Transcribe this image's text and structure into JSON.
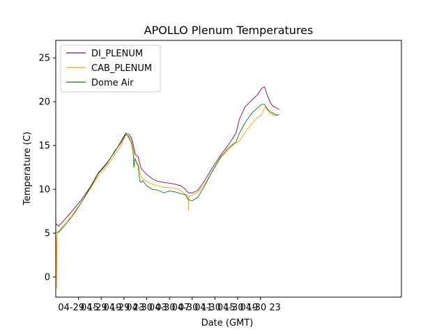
{
  "chart_data": {
    "type": "line",
    "title": "APOLLO Plenum Temperatures",
    "xlabel": "Date (GMT)",
    "ylabel": "Temperature (C)",
    "xlim": [
      11,
      71.8
    ],
    "ylim": [
      -2.3,
      27
    ],
    "x_unit": "hours since 04-29 00:00 GMT",
    "xticks": [
      {
        "value": 15,
        "label": "04-29 15"
      },
      {
        "value": 19,
        "label": "04-29 19"
      },
      {
        "value": 23,
        "label": "04-29 23"
      },
      {
        "value": 27,
        "label": "04-30 03"
      },
      {
        "value": 31,
        "label": "04-30 07"
      },
      {
        "value": 35,
        "label": "04-30 11"
      },
      {
        "value": 39,
        "label": "04-30 15"
      },
      {
        "value": 43,
        "label": "04-30 19"
      },
      {
        "value": 47,
        "label": "04-30 23"
      }
    ],
    "yticks": [
      {
        "value": 0,
        "label": "0"
      },
      {
        "value": 5,
        "label": "5"
      },
      {
        "value": 10,
        "label": "10"
      },
      {
        "value": 15,
        "label": "15"
      },
      {
        "value": 20,
        "label": "20"
      },
      {
        "value": 25,
        "label": "25"
      }
    ],
    "legend": {
      "position": "top-left"
    },
    "series": [
      {
        "name": "DI_PLENUM",
        "color": "#800080",
        "x": [
          11.0,
          11.5,
          12.5,
          14.0,
          15.5,
          17.0,
          18.5,
          20.0,
          21.5,
          22.5,
          23.3,
          23.8,
          24.3,
          24.6,
          25.0,
          25.5,
          26.0,
          27.0,
          28.0,
          29.0,
          30.0,
          31.0,
          32.0,
          33.0,
          33.8,
          34.3,
          35.0,
          36.0,
          37.0,
          38.5,
          40.0,
          41.5,
          42.7,
          43.3,
          44.3,
          45.5,
          46.5,
          47.2,
          47.7,
          48.3,
          48.8,
          49.2,
          49.8,
          50.3
        ],
        "y": [
          6.1,
          5.8,
          6.5,
          7.6,
          8.8,
          10.2,
          11.9,
          13.0,
          14.4,
          15.5,
          16.4,
          16.3,
          15.9,
          15.2,
          14.0,
          13.7,
          12.4,
          11.7,
          11.2,
          10.9,
          10.8,
          10.7,
          10.6,
          10.4,
          10.0,
          9.6,
          9.6,
          9.9,
          10.8,
          12.4,
          13.9,
          15.2,
          16.4,
          18.0,
          19.4,
          20.2,
          20.8,
          21.5,
          21.7,
          20.6,
          19.8,
          19.5,
          19.3,
          19.1
        ]
      },
      {
        "name": "CAB_PLENUM",
        "color": "#ffa500",
        "x": [
          11.0,
          11.1,
          11.2,
          11.25,
          11.3,
          11.5,
          12.5,
          14.0,
          15.5,
          17.0,
          18.5,
          20.0,
          21.5,
          22.5,
          23.3,
          23.8,
          24.3,
          24.6,
          25.0,
          25.5,
          26.0,
          27.0,
          28.0,
          29.0,
          30.0,
          31.0,
          32.0,
          33.0,
          33.8,
          34.3,
          34.35,
          34.4,
          35.0,
          36.0,
          37.0,
          38.5,
          40.0,
          41.5,
          42.7,
          43.3,
          44.3,
          45.5,
          46.5,
          47.2,
          47.6,
          47.8,
          48.3,
          48.8,
          49.2,
          49.8,
          50.3
        ],
        "y": [
          5.0,
          4.2,
          -1.3,
          4.6,
          5.1,
          5.2,
          6.0,
          7.2,
          8.5,
          10.0,
          11.5,
          12.6,
          14.1,
          15.0,
          16.2,
          16.1,
          15.6,
          14.8,
          13.3,
          12.9,
          11.4,
          10.9,
          10.6,
          10.4,
          10.2,
          10.2,
          10.1,
          9.9,
          9.4,
          9.3,
          7.6,
          9.2,
          9.3,
          9.7,
          10.4,
          12.0,
          13.6,
          14.6,
          15.3,
          15.5,
          16.5,
          17.5,
          18.2,
          18.5,
          19.1,
          19.4,
          19.0,
          18.6,
          18.5,
          18.4,
          18.5
        ]
      },
      {
        "name": "Dome Air",
        "color": "#008000",
        "x": [
          11.0,
          11.5,
          12.5,
          14.0,
          15.5,
          17.0,
          18.5,
          20.0,
          21.5,
          22.5,
          23.3,
          23.8,
          24.3,
          24.6,
          24.75,
          24.9,
          25.0,
          25.5,
          25.8,
          26.0,
          26.3,
          27.0,
          28.0,
          29.0,
          30.0,
          31.0,
          32.0,
          33.0,
          33.8,
          34.3,
          35.0,
          36.0,
          37.0,
          38.5,
          40.0,
          41.5,
          42.7,
          43.3,
          44.3,
          45.5,
          46.5,
          47.2,
          47.7,
          48.3,
          48.8,
          49.2,
          49.8,
          50.3
        ],
        "y": [
          5.1,
          5.1,
          5.8,
          7.0,
          8.5,
          10.1,
          11.8,
          12.9,
          14.5,
          15.3,
          16.3,
          16.0,
          15.3,
          14.3,
          12.5,
          13.5,
          13.4,
          12.6,
          10.9,
          10.8,
          11.0,
          10.4,
          10.0,
          9.9,
          9.6,
          9.8,
          9.7,
          9.5,
          9.4,
          8.8,
          8.7,
          9.1,
          10.2,
          12.0,
          13.7,
          14.8,
          15.4,
          16.4,
          17.6,
          18.7,
          19.3,
          19.7,
          19.7,
          19.1,
          18.8,
          18.7,
          18.5,
          18.5
        ]
      }
    ]
  }
}
